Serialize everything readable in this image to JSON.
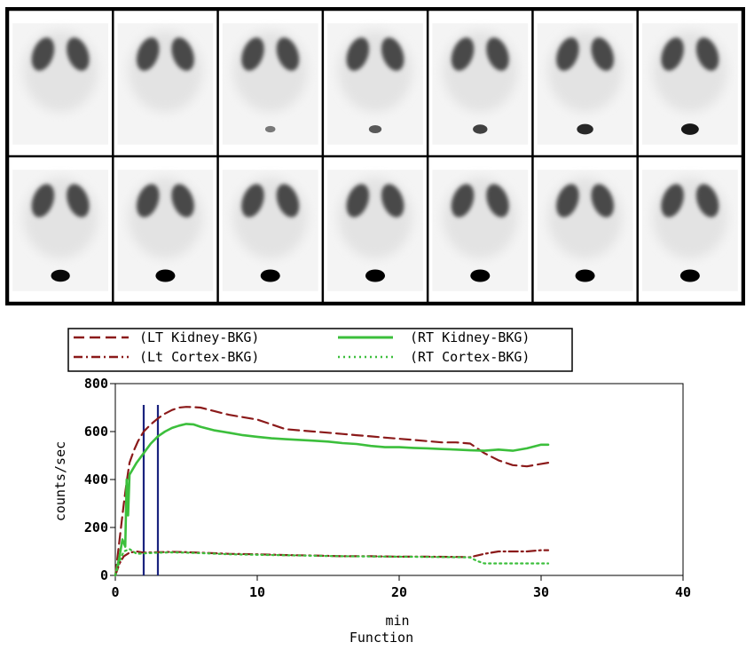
{
  "image_grid": {
    "rows": 2,
    "cols": 7,
    "frame_color": "#000000",
    "panel_background": "#f4f4f4",
    "kidney_color": "#4a4a4a",
    "bladder_color": "#000000",
    "bladder_intensity": [
      0,
      0,
      0.25,
      0.45,
      0.6,
      0.75,
      0.85,
      0.95,
      1,
      1,
      1,
      1,
      1,
      1
    ]
  },
  "chart_data": {
    "type": "line",
    "title": "",
    "xlabel": "min",
    "caption": "Function",
    "ylabel": "counts/sec",
    "xlim": [
      0,
      40
    ],
    "ylim": [
      0,
      800
    ],
    "xticks": [
      0,
      10,
      20,
      30,
      40
    ],
    "yticks": [
      0,
      200,
      400,
      600,
      800
    ],
    "vertical_markers": [
      2,
      3
    ],
    "marker_color": "#1a237e",
    "legend_position": "top",
    "series": [
      {
        "name": "(LT Kidney-BKG)",
        "color": "#8b1a1a",
        "style": "dashed",
        "x": [
          0,
          0.3,
          0.6,
          0.8,
          1.0,
          1.3,
          1.6,
          2.0,
          2.5,
          3.0,
          3.5,
          4.0,
          4.5,
          5.0,
          5.5,
          6.0,
          7.0,
          8.0,
          9.0,
          10.0,
          11.0,
          12.0,
          13.0,
          14.0,
          15.0,
          16.0,
          17.0,
          18.0,
          19.0,
          20.0,
          21.0,
          22.0,
          23.0,
          24.0,
          25.0,
          25.5,
          26.0,
          27.0,
          28.0,
          29.0,
          30.0,
          30.5
        ],
        "y": [
          0,
          150,
          300,
          390,
          470,
          520,
          560,
          600,
          630,
          655,
          675,
          690,
          700,
          703,
          702,
          700,
          685,
          670,
          660,
          650,
          630,
          610,
          605,
          600,
          595,
          590,
          585,
          580,
          575,
          570,
          565,
          560,
          555,
          555,
          550,
          530,
          510,
          480,
          460,
          455,
          465,
          470
        ]
      },
      {
        "name": "(RT Kidney-BKG)",
        "color": "#3cbf3c",
        "style": "solid",
        "x": [
          0,
          0.3,
          0.5,
          0.7,
          0.8,
          0.9,
          1.0,
          1.2,
          1.5,
          2.0,
          2.5,
          3.0,
          3.5,
          4.0,
          4.5,
          5.0,
          5.5,
          6.0,
          7.0,
          8.0,
          9.0,
          10.0,
          11.0,
          12.0,
          13.0,
          14.0,
          15.0,
          16.0,
          17.0,
          18.0,
          19.0,
          20.0,
          21.0,
          22.0,
          23.0,
          24.0,
          25.0,
          26.0,
          27.0,
          28.0,
          29.0,
          30.0,
          30.5
        ],
        "y": [
          0,
          80,
          150,
          120,
          400,
          250,
          420,
          440,
          470,
          510,
          550,
          580,
          600,
          615,
          625,
          632,
          630,
          620,
          605,
          595,
          585,
          578,
          572,
          568,
          565,
          562,
          558,
          552,
          548,
          540,
          535,
          535,
          532,
          530,
          527,
          525,
          522,
          520,
          525,
          520,
          530,
          545,
          545
        ]
      },
      {
        "name": "(Lt Cortex-BKG)",
        "color": "#8b1a1a",
        "style": "dashdot",
        "x": [
          0,
          0.3,
          0.6,
          1.0,
          1.5,
          2.0,
          3.0,
          4.0,
          5.0,
          6.0,
          8.0,
          10.0,
          12.0,
          14.0,
          16.0,
          18.0,
          20.0,
          22.0,
          24.0,
          25.0,
          26.0,
          27.0,
          28.0,
          29.0,
          30.0,
          30.5
        ],
        "y": [
          0,
          50,
          80,
          95,
          100,
          95,
          97,
          98,
          97,
          95,
          90,
          88,
          85,
          83,
          80,
          80,
          78,
          78,
          77,
          76,
          90,
          100,
          100,
          100,
          105,
          105
        ]
      },
      {
        "name": "(RT Cortex-BKG)",
        "color": "#3cbf3c",
        "style": "dotted",
        "x": [
          0,
          0.3,
          0.6,
          1.0,
          1.5,
          2.0,
          3.0,
          4.0,
          5.0,
          6.0,
          8.0,
          10.0,
          12.0,
          14.0,
          16.0,
          18.0,
          20.0,
          22.0,
          24.0,
          25.0,
          25.5,
          26.0,
          27.0,
          28.0,
          29.0,
          30.0,
          30.5
        ],
        "y": [
          0,
          60,
          100,
          110,
          90,
          92,
          95,
          96,
          95,
          93,
          88,
          86,
          84,
          82,
          80,
          79,
          78,
          77,
          76,
          75,
          60,
          50,
          50,
          50,
          50,
          50,
          50
        ]
      }
    ]
  }
}
